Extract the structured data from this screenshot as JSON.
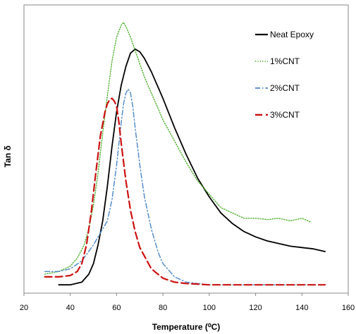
{
  "chart_data": {
    "type": "line",
    "title": "",
    "xlabel": "Temperature (⁰C)",
    "ylabel": "Tan δ",
    "xlim": [
      20,
      160
    ],
    "ylim": [
      0,
      1.0
    ],
    "x_ticks": [
      "20",
      "40",
      "60",
      "80",
      "100",
      "120",
      "140",
      "160"
    ],
    "y_ticks_shown": false,
    "grid": false,
    "legend_position": "top-right",
    "series": [
      {
        "name": "Neat Epoxy",
        "color": "#000000",
        "style": "solid",
        "x": [
          35,
          40,
          45,
          48,
          50,
          52,
          54,
          56,
          58,
          60,
          62,
          64,
          66,
          68,
          70,
          72,
          75,
          78,
          80,
          85,
          90,
          95,
          100,
          105,
          110,
          115,
          120,
          125,
          130,
          135,
          140,
          145,
          150
        ],
        "y": [
          0.01,
          0.01,
          0.02,
          0.05,
          0.09,
          0.16,
          0.25,
          0.38,
          0.53,
          0.66,
          0.76,
          0.83,
          0.88,
          0.895,
          0.885,
          0.86,
          0.81,
          0.75,
          0.71,
          0.6,
          0.5,
          0.41,
          0.34,
          0.28,
          0.24,
          0.21,
          0.19,
          0.175,
          0.165,
          0.155,
          0.15,
          0.145,
          0.135
        ]
      },
      {
        "name": "1%CNT",
        "color": "#4caf2a",
        "style": "dotted",
        "x": [
          29,
          35,
          40,
          43,
          46,
          48,
          50,
          52,
          54,
          56,
          58,
          60,
          62,
          63,
          64,
          66,
          68,
          70,
          72,
          75,
          78,
          80,
          85,
          90,
          95,
          100,
          105,
          110,
          115,
          120,
          125,
          130,
          135,
          140,
          144
        ],
        "y": [
          0.05,
          0.06,
          0.08,
          0.11,
          0.16,
          0.22,
          0.31,
          0.43,
          0.58,
          0.72,
          0.85,
          0.94,
          0.985,
          0.995,
          0.98,
          0.94,
          0.89,
          0.84,
          0.79,
          0.73,
          0.67,
          0.63,
          0.55,
          0.47,
          0.4,
          0.35,
          0.3,
          0.28,
          0.26,
          0.26,
          0.255,
          0.26,
          0.25,
          0.26,
          0.245
        ]
      },
      {
        "name": "2%CNT",
        "color": "#4a86c8",
        "style": "dashdot",
        "x": [
          29,
          35,
          40,
          45,
          50,
          52,
          54,
          56,
          58,
          60,
          62,
          63,
          64,
          65,
          66,
          67,
          68,
          70,
          72,
          75,
          78,
          80,
          85,
          90,
          100,
          110,
          120,
          130,
          140,
          146
        ],
        "y": [
          0.06,
          0.06,
          0.07,
          0.1,
          0.16,
          0.19,
          0.22,
          0.25,
          0.33,
          0.46,
          0.62,
          0.69,
          0.73,
          0.745,
          0.73,
          0.68,
          0.6,
          0.46,
          0.34,
          0.22,
          0.13,
          0.09,
          0.04,
          0.02,
          0.01,
          0.01,
          0.01,
          0.01,
          0.01,
          0.01
        ]
      },
      {
        "name": "3%CNT",
        "color": "#cc1111",
        "style": "dashed",
        "x": [
          29,
          35,
          40,
          43,
          45,
          47,
          49,
          51,
          53,
          55,
          56,
          57,
          58,
          59,
          60,
          61,
          62,
          64,
          66,
          68,
          70,
          75,
          80,
          85,
          90,
          100,
          110,
          120,
          130,
          140,
          150
        ],
        "y": [
          0.04,
          0.04,
          0.045,
          0.06,
          0.09,
          0.16,
          0.28,
          0.43,
          0.57,
          0.66,
          0.69,
          0.705,
          0.71,
          0.7,
          0.68,
          0.62,
          0.54,
          0.4,
          0.29,
          0.21,
          0.15,
          0.07,
          0.035,
          0.02,
          0.015,
          0.01,
          0.01,
          0.01,
          0.01,
          0.01,
          0.01
        ]
      }
    ]
  }
}
